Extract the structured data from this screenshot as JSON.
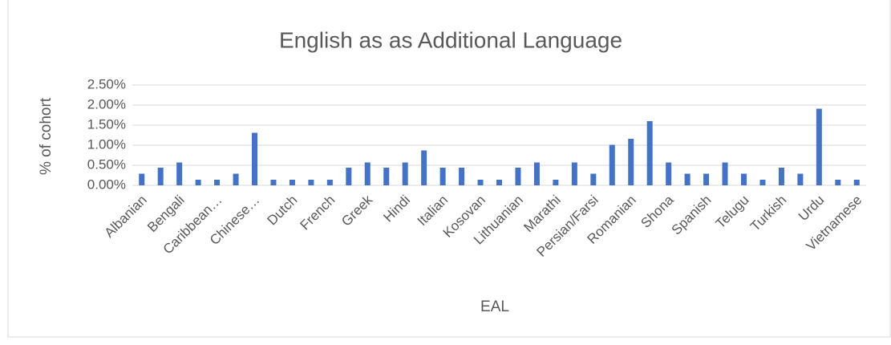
{
  "chart_data": {
    "type": "bar",
    "title": "English as as Additional Language",
    "xlabel": "EAL",
    "ylabel": "% of cohort",
    "categories": [
      "Albanian",
      null,
      "Bengali",
      null,
      "Caribbean…",
      null,
      "Chinese…",
      null,
      "Dutch",
      null,
      "French",
      null,
      "Greek",
      null,
      "Hindi",
      null,
      "Italian",
      null,
      "Kosovan",
      null,
      "Lithuanian",
      null,
      "Marathi",
      null,
      "Persian/Farsi",
      null,
      "Romanian",
      null,
      "Shona",
      null,
      "Spanish",
      null,
      "Telugu",
      null,
      "Turkish",
      null,
      "Urdu",
      null,
      "Vietnamese"
    ],
    "values": [
      0.29,
      0.44,
      0.57,
      0.14,
      0.14,
      0.29,
      1.31,
      0.14,
      0.14,
      0.14,
      0.14,
      0.44,
      0.57,
      0.44,
      0.57,
      0.87,
      0.44,
      0.44,
      0.14,
      0.14,
      0.44,
      0.57,
      0.14,
      0.57,
      0.29,
      1.01,
      1.16,
      1.6,
      0.57,
      0.29,
      0.29,
      0.57,
      0.29,
      0.14,
      0.44,
      0.29,
      1.91,
      0.14,
      0.14
    ],
    "color": "#4472c4",
    "ylim": [
      0,
      2.5
    ],
    "yticks": [
      {
        "value": 0,
        "label": "0.00%"
      },
      {
        "value": 0.5,
        "label": "0.50%"
      },
      {
        "value": 1,
        "label": "1.00%"
      },
      {
        "value": 1.5,
        "label": "1.50%"
      },
      {
        "value": 2,
        "label": "2.00%"
      },
      {
        "value": 2.5,
        "label": "2.50%"
      }
    ],
    "grid": true
  }
}
